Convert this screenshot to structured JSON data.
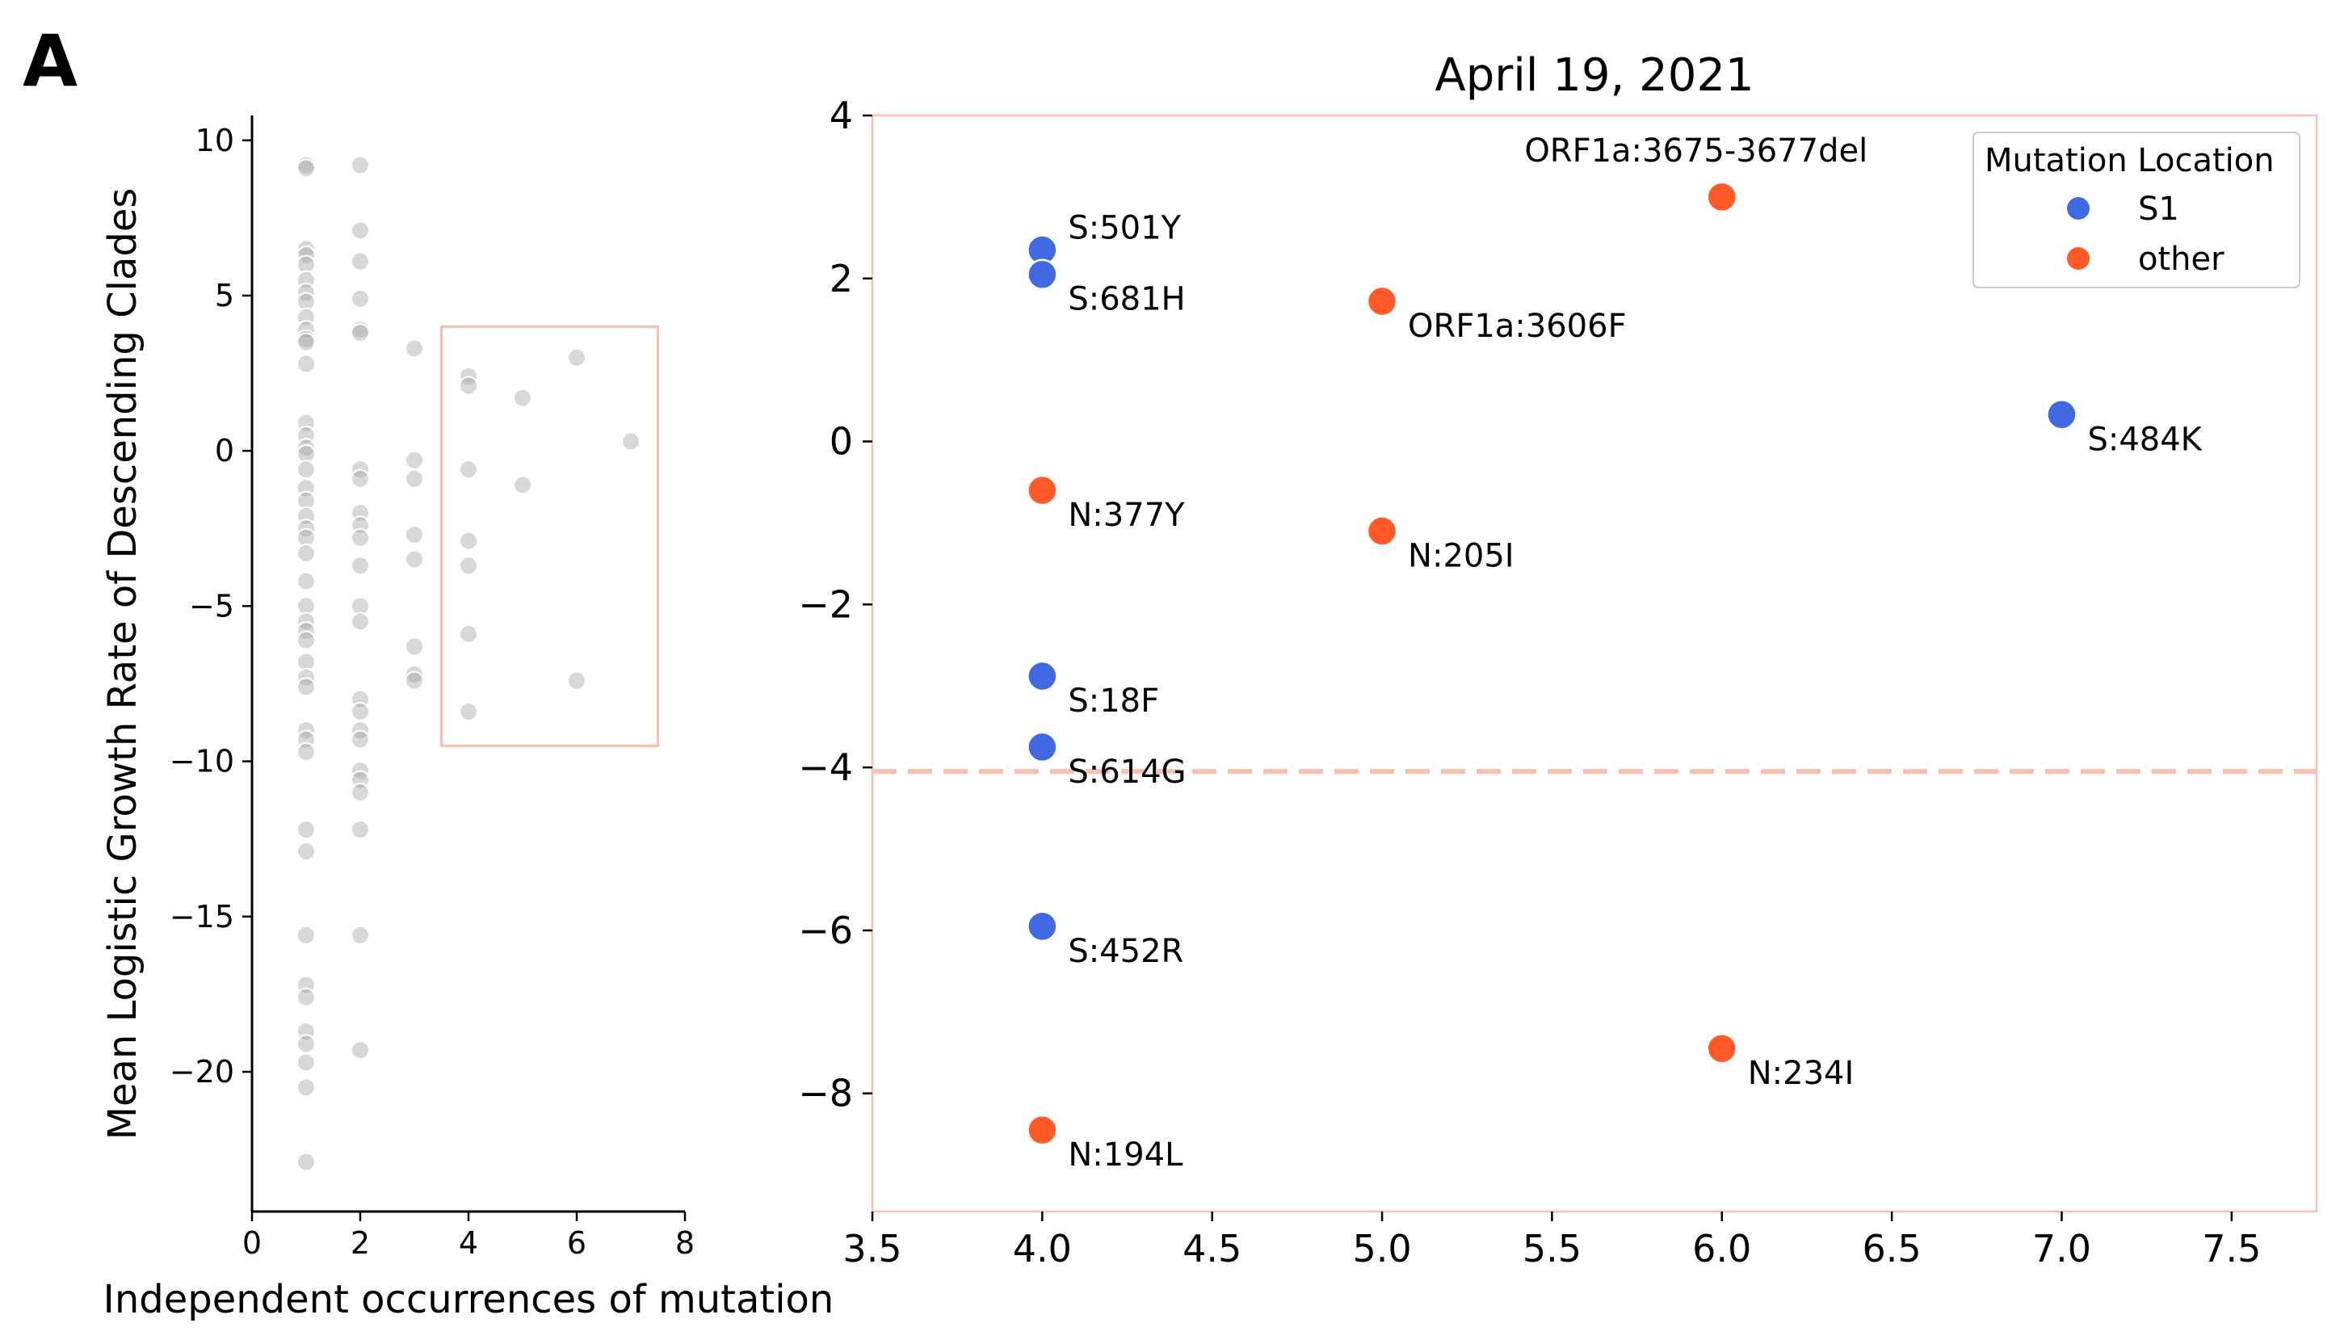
{
  "panel_label": "A",
  "chart_data": [
    {
      "type": "scatter",
      "title": "",
      "xlabel": "Independent occurrences of mutation",
      "ylabel": "Mean Logistic Growth Rate of Descending Clades",
      "xlim": [
        0,
        8
      ],
      "ylim": [
        -24.5,
        10.8
      ],
      "xticks": [
        0,
        2,
        4,
        6,
        8
      ],
      "yticks": [
        10,
        5,
        0,
        -5,
        -10,
        -15,
        -20
      ],
      "ytick_labels": [
        "10",
        "5",
        "0",
        "−5",
        "−10",
        "−15",
        "−20"
      ],
      "grid": false,
      "point_color": "#a9a9a9",
      "highlight_box": {
        "x": [
          3.5,
          7.5
        ],
        "y": [
          -9.5,
          4.0
        ],
        "color": "#f9c1b0"
      },
      "points": [
        {
          "x": 1,
          "y": 9.2
        },
        {
          "x": 1,
          "y": 9.1
        },
        {
          "x": 1,
          "y": 6.5
        },
        {
          "x": 1,
          "y": 6.3
        },
        {
          "x": 1,
          "y": 6.0
        },
        {
          "x": 1,
          "y": 5.5
        },
        {
          "x": 1,
          "y": 5.1
        },
        {
          "x": 1,
          "y": 4.8
        },
        {
          "x": 1,
          "y": 4.3
        },
        {
          "x": 1,
          "y": 3.9
        },
        {
          "x": 1,
          "y": 3.6
        },
        {
          "x": 1,
          "y": 3.5
        },
        {
          "x": 1,
          "y": 2.8
        },
        {
          "x": 1,
          "y": 0.9
        },
        {
          "x": 1,
          "y": 0.5
        },
        {
          "x": 1,
          "y": 0.1
        },
        {
          "x": 1,
          "y": -0.1
        },
        {
          "x": 1,
          "y": -0.6
        },
        {
          "x": 1,
          "y": -1.2
        },
        {
          "x": 1,
          "y": -1.6
        },
        {
          "x": 1,
          "y": -2.1
        },
        {
          "x": 1,
          "y": -2.5
        },
        {
          "x": 1,
          "y": -2.8
        },
        {
          "x": 1,
          "y": -3.3
        },
        {
          "x": 1,
          "y": -4.2
        },
        {
          "x": 1,
          "y": -5.0
        },
        {
          "x": 1,
          "y": -5.5
        },
        {
          "x": 1,
          "y": -5.8
        },
        {
          "x": 1,
          "y": -6.1
        },
        {
          "x": 1,
          "y": -6.8
        },
        {
          "x": 1,
          "y": -7.3
        },
        {
          "x": 1,
          "y": -7.6
        },
        {
          "x": 1,
          "y": -9.0
        },
        {
          "x": 1,
          "y": -9.3
        },
        {
          "x": 1,
          "y": -9.7
        },
        {
          "x": 1,
          "y": -12.2
        },
        {
          "x": 1,
          "y": -12.9
        },
        {
          "x": 1,
          "y": -15.6
        },
        {
          "x": 1,
          "y": -17.2
        },
        {
          "x": 1,
          "y": -17.6
        },
        {
          "x": 1,
          "y": -18.7
        },
        {
          "x": 1,
          "y": -19.1
        },
        {
          "x": 1,
          "y": -19.7
        },
        {
          "x": 1,
          "y": -20.5
        },
        {
          "x": 1,
          "y": -22.9
        },
        {
          "x": 2,
          "y": 9.2
        },
        {
          "x": 2,
          "y": 7.1
        },
        {
          "x": 2,
          "y": 6.1
        },
        {
          "x": 2,
          "y": 4.9
        },
        {
          "x": 2,
          "y": 3.9
        },
        {
          "x": 2,
          "y": 3.8
        },
        {
          "x": 2,
          "y": -0.6
        },
        {
          "x": 2,
          "y": -0.9
        },
        {
          "x": 2,
          "y": -2.0
        },
        {
          "x": 2,
          "y": -2.4
        },
        {
          "x": 2,
          "y": -2.8
        },
        {
          "x": 2,
          "y": -3.7
        },
        {
          "x": 2,
          "y": -5.0
        },
        {
          "x": 2,
          "y": -5.5
        },
        {
          "x": 2,
          "y": -8.0
        },
        {
          "x": 2,
          "y": -8.4
        },
        {
          "x": 2,
          "y": -9.0
        },
        {
          "x": 2,
          "y": -9.3
        },
        {
          "x": 2,
          "y": -10.3
        },
        {
          "x": 2,
          "y": -10.6
        },
        {
          "x": 2,
          "y": -11.0
        },
        {
          "x": 2,
          "y": -12.2
        },
        {
          "x": 2,
          "y": -15.6
        },
        {
          "x": 2,
          "y": -19.3
        },
        {
          "x": 3,
          "y": 3.3
        },
        {
          "x": 3,
          "y": -0.3
        },
        {
          "x": 3,
          "y": -0.9
        },
        {
          "x": 3,
          "y": -2.7
        },
        {
          "x": 3,
          "y": -3.5
        },
        {
          "x": 3,
          "y": -6.3
        },
        {
          "x": 3,
          "y": -7.2
        },
        {
          "x": 3,
          "y": -7.4
        },
        {
          "x": 4,
          "y": 2.4
        },
        {
          "x": 4,
          "y": 2.1
        },
        {
          "x": 4,
          "y": -0.6
        },
        {
          "x": 4,
          "y": -2.9
        },
        {
          "x": 4,
          "y": -3.7
        },
        {
          "x": 4,
          "y": -5.9
        },
        {
          "x": 4,
          "y": -8.4
        },
        {
          "x": 5,
          "y": 1.7
        },
        {
          "x": 5,
          "y": -1.1
        },
        {
          "x": 6,
          "y": 3.0
        },
        {
          "x": 6,
          "y": -7.4
        },
        {
          "x": 7,
          "y": 0.3
        }
      ]
    },
    {
      "type": "scatter",
      "title": "April 19, 2021",
      "xlabel": "",
      "ylabel": "",
      "xlim": [
        3.5,
        7.75
      ],
      "ylim": [
        -9.45,
        4.0
      ],
      "xticks": [
        3.5,
        4.0,
        4.5,
        5.0,
        5.5,
        6.0,
        6.5,
        7.0,
        7.5
      ],
      "xtick_labels": [
        "3.5",
        "4.0",
        "4.5",
        "5.0",
        "5.5",
        "6.0",
        "6.5",
        "7.0",
        "7.5"
      ],
      "yticks": [
        4,
        2,
        0,
        -2,
        -4,
        -6,
        -8
      ],
      "ytick_labels": [
        "4",
        "2",
        "0",
        "−2",
        "−4",
        "−6",
        "−8"
      ],
      "grid": false,
      "frame_color": "#f9c1b0",
      "reference_line": {
        "y": -4.05,
        "color": "#f9c1b0",
        "style": "dashed"
      },
      "legend": {
        "title": "Mutation Location",
        "placement": "top-right",
        "entries": [
          {
            "label": "S1",
            "color": "#4169e1"
          },
          {
            "label": "other",
            "color": "#ff5a28"
          }
        ]
      },
      "points": [
        {
          "x": 4.0,
          "y": 2.35,
          "label": "S:501Y",
          "group": "S1",
          "label_pos": "upper-right"
        },
        {
          "x": 4.0,
          "y": 2.05,
          "label": "S:681H",
          "group": "S1",
          "label_pos": "lower-right"
        },
        {
          "x": 6.0,
          "y": 3.0,
          "label": "ORF1a:3675-3677del",
          "group": "other",
          "label_pos": "above-left"
        },
        {
          "x": 5.0,
          "y": 1.72,
          "label": "ORF1a:3606F",
          "group": "other",
          "label_pos": "lower-right"
        },
        {
          "x": 7.0,
          "y": 0.33,
          "label": "S:484K",
          "group": "S1",
          "label_pos": "lower-right"
        },
        {
          "x": 4.0,
          "y": -0.6,
          "label": "N:377Y",
          "group": "other",
          "label_pos": "lower-right"
        },
        {
          "x": 5.0,
          "y": -1.1,
          "label": "N:205I",
          "group": "other",
          "label_pos": "lower-right"
        },
        {
          "x": 4.0,
          "y": -2.88,
          "label": "S:18F",
          "group": "S1",
          "label_pos": "lower-right"
        },
        {
          "x": 4.0,
          "y": -3.75,
          "label": "S:614G",
          "group": "S1",
          "label_pos": "lower-right"
        },
        {
          "x": 4.0,
          "y": -5.95,
          "label": "S:452R",
          "group": "S1",
          "label_pos": "lower-right"
        },
        {
          "x": 6.0,
          "y": -7.45,
          "label": "N:234I",
          "group": "other",
          "label_pos": "lower-right"
        },
        {
          "x": 4.0,
          "y": -8.45,
          "label": "N:194L",
          "group": "other",
          "label_pos": "lower-right"
        }
      ]
    }
  ]
}
